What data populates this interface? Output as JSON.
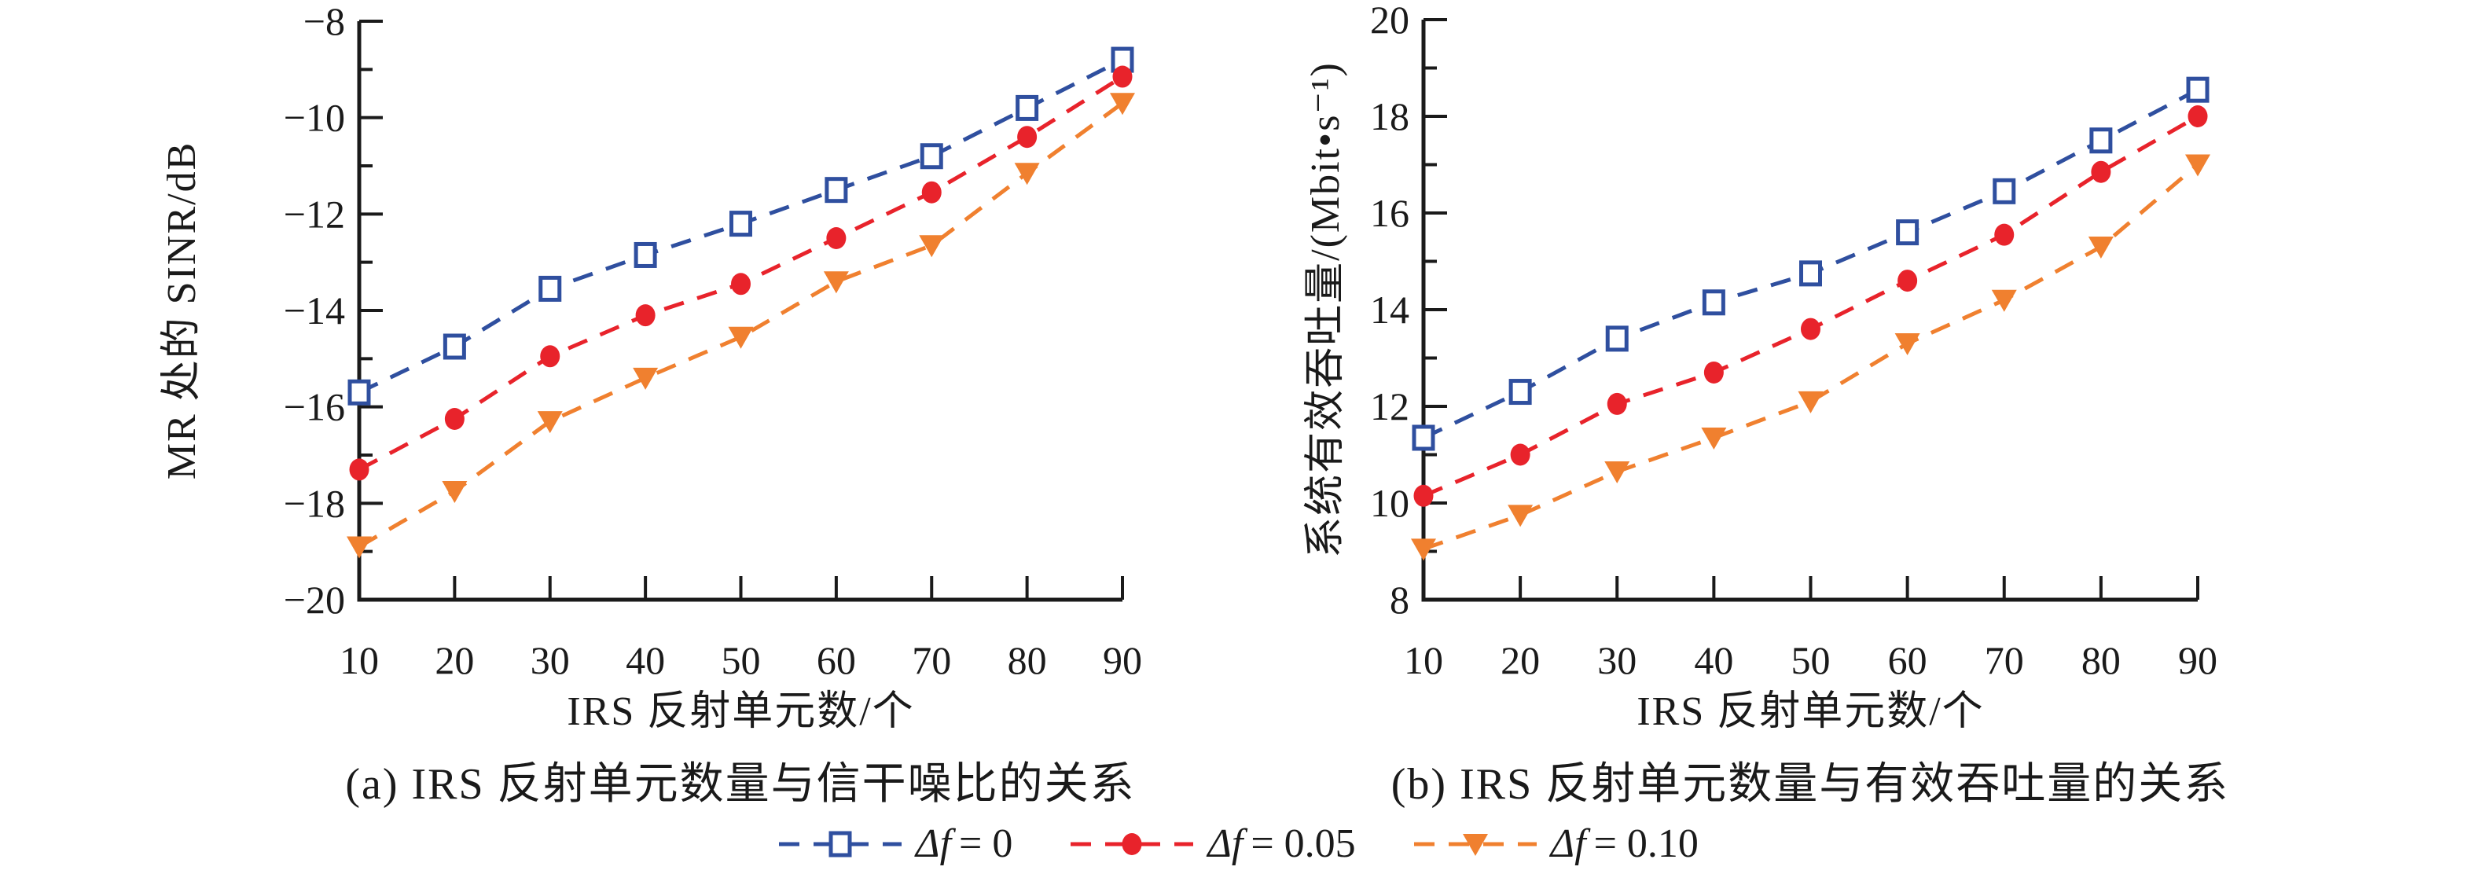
{
  "figure": {
    "background": "#ffffff",
    "text_color": "#1a1a1a",
    "accent_blue": "#2F4F9F",
    "accent_red": "#E8232B",
    "accent_orange": "#F0802F"
  },
  "legend": {
    "items": [
      {
        "symbol": "Δf",
        "rest": "= 0",
        "marker": "square",
        "color": "#2F4F9F"
      },
      {
        "symbol": "Δf",
        "rest": "= 0.05",
        "marker": "circle",
        "color": "#E8232B"
      },
      {
        "symbol": "Δf",
        "rest": "= 0.10",
        "marker": "triangle",
        "color": "#F0802F"
      }
    ]
  },
  "chart_data": [
    {
      "type": "line",
      "caption": "(a) IRS 反射单元数量与信干噪比的关系",
      "xlabel": "IRS 反射单元数/个",
      "ylabel": "MR 处的 SINR/dB",
      "xlim": [
        10,
        90
      ],
      "ylim": [
        -20,
        -8
      ],
      "grid": false,
      "x": [
        10,
        20,
        30,
        40,
        50,
        60,
        70,
        80,
        90
      ],
      "xticks": [
        {
          "v": 10,
          "label": "10"
        },
        {
          "v": 20,
          "label": "20"
        },
        {
          "v": 30,
          "label": "30"
        },
        {
          "v": 40,
          "label": "40"
        },
        {
          "v": 50,
          "label": "50"
        },
        {
          "v": 60,
          "label": "60"
        },
        {
          "v": 70,
          "label": "70"
        },
        {
          "v": 80,
          "label": "80"
        },
        {
          "v": 90,
          "label": "90"
        }
      ],
      "yticks": [
        {
          "v": -8,
          "label": "−8"
        },
        {
          "v": -10,
          "label": "−10"
        },
        {
          "v": -12,
          "label": "−12"
        },
        {
          "v": -14,
          "label": "−14"
        },
        {
          "v": -16,
          "label": "−16"
        },
        {
          "v": -18,
          "label": "−18"
        },
        {
          "v": -20,
          "label": "−20"
        }
      ],
      "series": [
        {
          "name": "Δf = 0",
          "marker": "square",
          "color": "#2F4F9F",
          "values": [
            -15.7,
            -14.75,
            -13.55,
            -12.85,
            -12.2,
            -11.5,
            -10.8,
            -9.8,
            -8.8
          ]
        },
        {
          "name": "Δf = 0.05",
          "marker": "circle",
          "color": "#E8232B",
          "values": [
            -17.3,
            -16.25,
            -14.95,
            -14.1,
            -13.45,
            -12.5,
            -11.55,
            -10.4,
            -9.15
          ]
        },
        {
          "name": "Δf = 0.10",
          "marker": "triangle",
          "color": "#F0802F",
          "values": [
            -18.9,
            -17.75,
            -16.3,
            -15.4,
            -14.55,
            -13.4,
            -12.65,
            -11.15,
            -9.7
          ]
        }
      ]
    },
    {
      "type": "line",
      "caption": "(b) IRS 反射单元数量与有效吞吐量的关系",
      "xlabel": "IRS 反射单元数/个",
      "ylabel": "系统有效吞吐量/(Mbit•s⁻¹)",
      "xlim": [
        10,
        90
      ],
      "ylim": [
        8,
        20
      ],
      "grid": false,
      "x": [
        10,
        20,
        30,
        40,
        50,
        60,
        70,
        80,
        90
      ],
      "xticks": [
        {
          "v": 10,
          "label": "10"
        },
        {
          "v": 20,
          "label": "20"
        },
        {
          "v": 30,
          "label": "30"
        },
        {
          "v": 40,
          "label": "40"
        },
        {
          "v": 50,
          "label": "50"
        },
        {
          "v": 60,
          "label": "60"
        },
        {
          "v": 70,
          "label": "70"
        },
        {
          "v": 80,
          "label": "80"
        },
        {
          "v": 90,
          "label": "90"
        }
      ],
      "yticks": [
        {
          "v": 20,
          "label": "20"
        },
        {
          "v": 18,
          "label": "18"
        },
        {
          "v": 16,
          "label": "16"
        },
        {
          "v": 14,
          "label": "14"
        },
        {
          "v": 12,
          "label": "12"
        },
        {
          "v": 10,
          "label": "10"
        },
        {
          "v": 8,
          "label": "8"
        }
      ],
      "series": [
        {
          "name": "Δf = 0",
          "marker": "square",
          "color": "#2F4F9F",
          "values": [
            11.35,
            12.3,
            13.4,
            14.15,
            14.75,
            15.6,
            16.45,
            17.5,
            18.55
          ]
        },
        {
          "name": "Δf = 0.05",
          "marker": "circle",
          "color": "#E8232B",
          "values": [
            10.15,
            11.0,
            12.05,
            12.7,
            13.6,
            14.6,
            15.55,
            16.85,
            18.0
          ]
        },
        {
          "name": "Δf = 0.10",
          "marker": "triangle",
          "color": "#F0802F",
          "values": [
            9.05,
            9.75,
            10.65,
            11.35,
            12.1,
            13.3,
            14.2,
            15.3,
            17.0
          ]
        }
      ]
    }
  ]
}
